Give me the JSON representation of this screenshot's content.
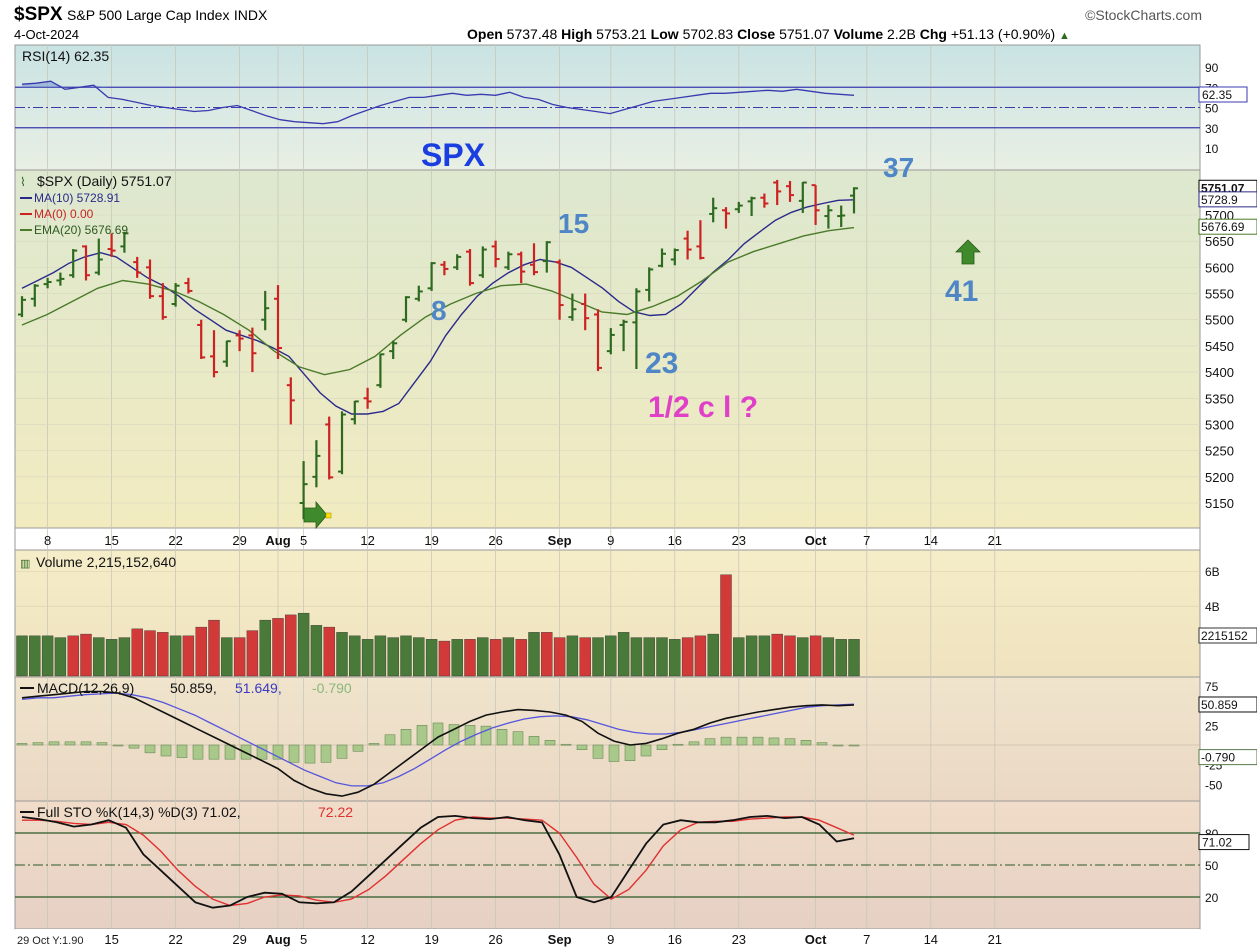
{
  "header": {
    "symbol": "$SPX",
    "name": "S&P 500 Large Cap Index",
    "exchange": "INDX",
    "date": "4-Oct-2024",
    "brand": "©StockCharts.com",
    "open_label": "Open",
    "open": "5737.48",
    "high_label": "High",
    "high": "5753.21",
    "low_label": "Low",
    "low": "5702.83",
    "close_label": "Close",
    "close": "5751.07",
    "volume_label": "Volume",
    "volume": "2.2B",
    "chg_label": "Chg",
    "chg": "+51.13 (+0.90%)",
    "chg_arrow": "▲",
    "footer_note": "29 Oct Y:1.90"
  },
  "colors": {
    "up": "#2d6a1f",
    "down": "#cc2222",
    "ma10": "#2a2a8a",
    "ema20": "#4a7a2a",
    "wave_label": "#4f86c6",
    "spx_label": "#1a3ee0",
    "pink_label": "#e040c8",
    "arrow": "#3f8a2a"
  },
  "chart_data": {
    "type": "bar",
    "instrument": "$SPX (Daily)",
    "last": "5751.07",
    "x_ticks": [
      "8",
      "15",
      "22",
      "29",
      "Aug",
      "5",
      "12",
      "19",
      "26",
      "Sep",
      "9",
      "16",
      "23",
      "Oct",
      "7",
      "14",
      "21"
    ],
    "y_ticks": [
      5150,
      5200,
      5250,
      5300,
      5350,
      5400,
      5450,
      5500,
      5550,
      5600,
      5650,
      5700
    ],
    "ylim": [
      5110,
      5760
    ],
    "legend": {
      "title": "$SPX (Daily) 5751.07",
      "ma10": "MA(10) 5728.91",
      "ma0": "MA(0) 0.00",
      "ema20": "EMA(20) 5676.69"
    },
    "right_labels": {
      "close": "5751.07",
      "ma10": "5728.9",
      "ema20": "5676.69"
    },
    "annotations": {
      "title": "SPX",
      "w8": "8",
      "w15": "15",
      "w23": "23",
      "w37": "37",
      "w41": "41",
      "half": "1/2 c l ?"
    },
    "bars": [
      {
        "d": "2024-07-03",
        "o": 5510,
        "h": 5545,
        "l": 5505,
        "c": 5538
      },
      {
        "d": "2024-07-05",
        "o": 5540,
        "h": 5568,
        "l": 5525,
        "c": 5565
      },
      {
        "d": "2024-07-08",
        "o": 5568,
        "h": 5580,
        "l": 5560,
        "c": 5572
      },
      {
        "d": "2024-07-09",
        "o": 5575,
        "h": 5590,
        "l": 5565,
        "c": 5578
      },
      {
        "d": "2024-07-10",
        "o": 5585,
        "h": 5635,
        "l": 5580,
        "c": 5632
      },
      {
        "d": "2024-07-11",
        "o": 5640,
        "h": 5642,
        "l": 5575,
        "c": 5585
      },
      {
        "d": "2024-07-12",
        "o": 5590,
        "h": 5655,
        "l": 5585,
        "c": 5615
      },
      {
        "d": "2024-07-15",
        "o": 5635,
        "h": 5665,
        "l": 5620,
        "c": 5632
      },
      {
        "d": "2024-07-16",
        "o": 5640,
        "h": 5668,
        "l": 5628,
        "c": 5665
      },
      {
        "d": "2024-07-17",
        "o": 5610,
        "h": 5620,
        "l": 5580,
        "c": 5590
      },
      {
        "d": "2024-07-18",
        "o": 5600,
        "h": 5615,
        "l": 5540,
        "c": 5545
      },
      {
        "d": "2024-07-19",
        "o": 5545,
        "h": 5570,
        "l": 5500,
        "c": 5505
      },
      {
        "d": "2024-07-22",
        "o": 5530,
        "h": 5570,
        "l": 5525,
        "c": 5565
      },
      {
        "d": "2024-07-23",
        "o": 5570,
        "h": 5580,
        "l": 5550,
        "c": 5555
      },
      {
        "d": "2024-07-24",
        "o": 5490,
        "h": 5500,
        "l": 5425,
        "c": 5428
      },
      {
        "d": "2024-07-25",
        "o": 5430,
        "h": 5480,
        "l": 5390,
        "c": 5400
      },
      {
        "d": "2024-07-26",
        "o": 5420,
        "h": 5460,
        "l": 5410,
        "c": 5459
      },
      {
        "d": "2024-07-29",
        "o": 5470,
        "h": 5480,
        "l": 5440,
        "c": 5464
      },
      {
        "d": "2024-07-30",
        "o": 5470,
        "h": 5485,
        "l": 5400,
        "c": 5436
      },
      {
        "d": "2024-07-31",
        "o": 5500,
        "h": 5555,
        "l": 5480,
        "c": 5522
      },
      {
        "d": "2024-08-01",
        "o": 5540,
        "h": 5566,
        "l": 5425,
        "c": 5446
      },
      {
        "d": "2024-08-02",
        "o": 5375,
        "h": 5390,
        "l": 5300,
        "c": 5346
      },
      {
        "d": "2024-08-05",
        "o": 5150,
        "h": 5230,
        "l": 5119,
        "c": 5186
      },
      {
        "d": "2024-08-06",
        "o": 5200,
        "h": 5270,
        "l": 5180,
        "c": 5240
      },
      {
        "d": "2024-08-07",
        "o": 5300,
        "h": 5315,
        "l": 5195,
        "c": 5199
      },
      {
        "d": "2024-08-08",
        "o": 5210,
        "h": 5325,
        "l": 5205,
        "c": 5319
      },
      {
        "d": "2024-08-09",
        "o": 5310,
        "h": 5345,
        "l": 5300,
        "c": 5344
      },
      {
        "d": "2024-08-12",
        "o": 5350,
        "h": 5370,
        "l": 5330,
        "c": 5344
      },
      {
        "d": "2024-08-13",
        "o": 5375,
        "h": 5435,
        "l": 5370,
        "c": 5434
      },
      {
        "d": "2024-08-14",
        "o": 5440,
        "h": 5460,
        "l": 5425,
        "c": 5455
      },
      {
        "d": "2024-08-15",
        "o": 5500,
        "h": 5545,
        "l": 5495,
        "c": 5543
      },
      {
        "d": "2024-08-16",
        "o": 5540,
        "h": 5565,
        "l": 5535,
        "c": 5554
      },
      {
        "d": "2024-08-19",
        "o": 5560,
        "h": 5610,
        "l": 5555,
        "c": 5608
      },
      {
        "d": "2024-08-20",
        "o": 5605,
        "h": 5612,
        "l": 5585,
        "c": 5597
      },
      {
        "d": "2024-08-21",
        "o": 5600,
        "h": 5625,
        "l": 5595,
        "c": 5620
      },
      {
        "d": "2024-08-22",
        "o": 5630,
        "h": 5635,
        "l": 5565,
        "c": 5570
      },
      {
        "d": "2024-08-23",
        "o": 5585,
        "h": 5640,
        "l": 5580,
        "c": 5634
      },
      {
        "d": "2024-08-26",
        "o": 5640,
        "h": 5651,
        "l": 5600,
        "c": 5616
      },
      {
        "d": "2024-08-27",
        "o": 5600,
        "h": 5630,
        "l": 5595,
        "c": 5625
      },
      {
        "d": "2024-08-28",
        "o": 5625,
        "h": 5630,
        "l": 5570,
        "c": 5592
      },
      {
        "d": "2024-08-29",
        "o": 5605,
        "h": 5646,
        "l": 5585,
        "c": 5591
      },
      {
        "d": "2024-08-30",
        "o": 5612,
        "h": 5650,
        "l": 5590,
        "c": 5648
      },
      {
        "d": "2024-09-03",
        "o": 5610,
        "h": 5615,
        "l": 5500,
        "c": 5528
      },
      {
        "d": "2024-09-04",
        "o": 5505,
        "h": 5550,
        "l": 5498,
        "c": 5520
      },
      {
        "d": "2024-09-05",
        "o": 5530,
        "h": 5550,
        "l": 5480,
        "c": 5503
      },
      {
        "d": "2024-09-06",
        "o": 5510,
        "h": 5520,
        "l": 5402,
        "c": 5408
      },
      {
        "d": "2024-09-09",
        "o": 5440,
        "h": 5484,
        "l": 5434,
        "c": 5471
      },
      {
        "d": "2024-09-10",
        "o": 5490,
        "h": 5500,
        "l": 5440,
        "c": 5496
      },
      {
        "d": "2024-09-11",
        "o": 5495,
        "h": 5560,
        "l": 5406,
        "c": 5554
      },
      {
        "d": "2024-09-12",
        "o": 5557,
        "h": 5600,
        "l": 5535,
        "c": 5596
      },
      {
        "d": "2024-09-13",
        "o": 5603,
        "h": 5636,
        "l": 5600,
        "c": 5626
      },
      {
        "d": "2024-09-16",
        "o": 5615,
        "h": 5636,
        "l": 5604,
        "c": 5633
      },
      {
        "d": "2024-09-17",
        "o": 5655,
        "h": 5670,
        "l": 5615,
        "c": 5634
      },
      {
        "d": "2024-09-18",
        "o": 5640,
        "h": 5690,
        "l": 5615,
        "c": 5618
      },
      {
        "d": "2024-09-19",
        "o": 5702,
        "h": 5733,
        "l": 5686,
        "c": 5713
      },
      {
        "d": "2024-09-20",
        "o": 5709,
        "h": 5715,
        "l": 5674,
        "c": 5703
      },
      {
        "d": "2024-09-23",
        "o": 5711,
        "h": 5725,
        "l": 5704,
        "c": 5718
      },
      {
        "d": "2024-09-24",
        "o": 5726,
        "h": 5735,
        "l": 5698,
        "c": 5732
      },
      {
        "d": "2024-09-25",
        "o": 5733,
        "h": 5741,
        "l": 5714,
        "c": 5722
      },
      {
        "d": "2024-09-26",
        "o": 5762,
        "h": 5767,
        "l": 5719,
        "c": 5745
      },
      {
        "d": "2024-09-27",
        "o": 5755,
        "h": 5765,
        "l": 5725,
        "c": 5738
      },
      {
        "d": "2024-09-30",
        "o": 5727,
        "h": 5763,
        "l": 5704,
        "c": 5762
      },
      {
        "d": "2024-10-01",
        "o": 5757,
        "h": 5757,
        "l": 5681,
        "c": 5709
      },
      {
        "d": "2024-10-02",
        "o": 5698,
        "h": 5719,
        "l": 5674,
        "c": 5709
      },
      {
        "d": "2024-10-03",
        "o": 5698,
        "h": 5718,
        "l": 5677,
        "c": 5699
      },
      {
        "d": "2024-10-04",
        "o": 5737,
        "h": 5753,
        "l": 5703,
        "c": 5751
      }
    ],
    "ma10": [
      5560,
      5575,
      5590,
      5608,
      5620,
      5628,
      5620,
      5600,
      5580,
      5565,
      5545,
      5520,
      5500,
      5480,
      5470,
      5460,
      5446,
      5430,
      5395,
      5360,
      5335,
      5320,
      5320,
      5325,
      5340,
      5380,
      5420,
      5470,
      5510,
      5545,
      5570,
      5590,
      5605,
      5615,
      5610,
      5600,
      5580,
      5560,
      5535,
      5515,
      5508,
      5510,
      5530,
      5560,
      5590,
      5615,
      5645,
      5668,
      5690,
      5705,
      5715,
      5722,
      5728,
      5729
    ],
    "ema20": [
      5490,
      5510,
      5535,
      5560,
      5575,
      5568,
      5555,
      5535,
      5510,
      5480,
      5440,
      5410,
      5395,
      5405,
      5430,
      5470,
      5505,
      5530,
      5550,
      5565,
      5568,
      5555,
      5535,
      5515,
      5510,
      5525,
      5545,
      5575,
      5610,
      5630,
      5645,
      5660,
      5670,
      5676
    ]
  },
  "rsi": {
    "label": "RSI(14) 62.35",
    "value": "62.35",
    "y_ticks": [
      "90",
      "70",
      "50",
      "30",
      "10"
    ],
    "series": [
      73,
      74,
      76,
      68,
      70,
      72,
      60,
      58,
      55,
      52,
      50,
      48,
      46,
      47,
      50,
      52,
      47,
      42,
      38,
      36,
      35,
      34,
      36,
      42,
      47,
      52,
      56,
      60,
      60,
      62,
      64,
      62,
      63,
      62,
      65,
      60,
      58,
      53,
      50,
      48,
      46,
      44,
      48,
      52,
      56,
      58,
      60,
      62,
      64,
      64,
      65,
      66,
      67,
      66,
      68,
      66,
      64,
      63,
      62
    ]
  },
  "volume": {
    "label": "Volume 2,215,152,640",
    "right_value": "2215152",
    "y_ticks": [
      "6B",
      "4B"
    ],
    "bars": [
      {
        "v": 2.3,
        "up": true
      },
      {
        "v": 2.3,
        "up": true
      },
      {
        "v": 2.3,
        "up": true
      },
      {
        "v": 2.2,
        "up": true
      },
      {
        "v": 2.3,
        "up": false
      },
      {
        "v": 2.4,
        "up": false
      },
      {
        "v": 2.2,
        "up": true
      },
      {
        "v": 2.1,
        "up": true
      },
      {
        "v": 2.2,
        "up": true
      },
      {
        "v": 2.7,
        "up": false
      },
      {
        "v": 2.6,
        "up": false
      },
      {
        "v": 2.5,
        "up": false
      },
      {
        "v": 2.3,
        "up": true
      },
      {
        "v": 2.3,
        "up": false
      },
      {
        "v": 2.8,
        "up": false
      },
      {
        "v": 3.2,
        "up": false
      },
      {
        "v": 2.2,
        "up": true
      },
      {
        "v": 2.2,
        "up": false
      },
      {
        "v": 2.6,
        "up": false
      },
      {
        "v": 3.2,
        "up": true
      },
      {
        "v": 3.3,
        "up": false
      },
      {
        "v": 3.5,
        "up": false
      },
      {
        "v": 3.6,
        "up": true
      },
      {
        "v": 2.9,
        "up": true
      },
      {
        "v": 2.8,
        "up": false
      },
      {
        "v": 2.5,
        "up": true
      },
      {
        "v": 2.3,
        "up": true
      },
      {
        "v": 2.1,
        "up": true
      },
      {
        "v": 2.3,
        "up": true
      },
      {
        "v": 2.2,
        "up": true
      },
      {
        "v": 2.3,
        "up": true
      },
      {
        "v": 2.2,
        "up": true
      },
      {
        "v": 2.1,
        "up": true
      },
      {
        "v": 2.0,
        "up": false
      },
      {
        "v": 2.1,
        "up": true
      },
      {
        "v": 2.1,
        "up": false
      },
      {
        "v": 2.2,
        "up": true
      },
      {
        "v": 2.1,
        "up": false
      },
      {
        "v": 2.2,
        "up": true
      },
      {
        "v": 2.1,
        "up": false
      },
      {
        "v": 2.5,
        "up": true
      },
      {
        "v": 2.5,
        "up": false
      },
      {
        "v": 2.2,
        "up": false
      },
      {
        "v": 2.3,
        "up": true
      },
      {
        "v": 2.2,
        "up": false
      },
      {
        "v": 2.2,
        "up": true
      },
      {
        "v": 2.3,
        "up": true
      },
      {
        "v": 2.5,
        "up": true
      },
      {
        "v": 2.2,
        "up": true
      },
      {
        "v": 2.2,
        "up": true
      },
      {
        "v": 2.2,
        "up": true
      },
      {
        "v": 2.1,
        "up": true
      },
      {
        "v": 2.2,
        "up": false
      },
      {
        "v": 2.3,
        "up": false
      },
      {
        "v": 2.4,
        "up": true
      },
      {
        "v": 5.8,
        "up": false
      },
      {
        "v": 2.2,
        "up": true
      },
      {
        "v": 2.3,
        "up": true
      },
      {
        "v": 2.3,
        "up": true
      },
      {
        "v": 2.4,
        "up": false
      },
      {
        "v": 2.3,
        "up": false
      },
      {
        "v": 2.2,
        "up": true
      },
      {
        "v": 2.3,
        "up": false
      },
      {
        "v": 2.2,
        "up": true
      },
      {
        "v": 2.1,
        "up": true
      },
      {
        "v": 2.1,
        "up": true
      }
    ]
  },
  "macd": {
    "label": "MACD(12,26,9)",
    "macd_value": "50.859",
    "signal_value": "51.649",
    "hist_value": "-0.790",
    "y_ticks": [
      "75",
      "25",
      "-25",
      "-50"
    ],
    "macd": [
      60,
      62,
      64,
      66,
      68,
      68,
      66,
      60,
      50,
      40,
      30,
      20,
      10,
      0,
      -10,
      -20,
      -30,
      -45,
      -55,
      -62,
      -65,
      -60,
      -50,
      -35,
      -20,
      -5,
      10,
      20,
      30,
      38,
      42,
      45,
      44,
      42,
      38,
      30,
      15,
      5,
      0,
      2,
      8,
      15,
      20,
      28,
      34,
      38,
      42,
      45,
      48,
      50,
      51,
      50,
      51
    ],
    "signal": [
      58,
      60,
      60,
      62,
      64,
      65,
      66,
      64,
      60,
      54,
      46,
      38,
      28,
      18,
      8,
      -2,
      -12,
      -22,
      -32,
      -40,
      -48,
      -52,
      -52,
      -48,
      -40,
      -30,
      -18,
      -6,
      5,
      14,
      22,
      28,
      33,
      36,
      37,
      36,
      32,
      26,
      20,
      16,
      14,
      14,
      16,
      20,
      24,
      28,
      32,
      36,
      40,
      44,
      48,
      50,
      51,
      52
    ],
    "hist": [
      2,
      3,
      4,
      4,
      4,
      3,
      0,
      -4,
      -10,
      -14,
      -16,
      -18,
      -18,
      -18,
      -18,
      -18,
      -18,
      -22,
      -23,
      -22,
      -17,
      -8,
      2,
      13,
      20,
      25,
      28,
      26,
      25,
      24,
      20,
      17,
      11,
      6,
      1,
      -6,
      -17,
      -21,
      -20,
      -14,
      -6,
      1,
      4,
      8,
      10,
      10,
      10,
      9,
      8,
      6,
      3,
      0,
      -1
    ]
  },
  "sto": {
    "label": "Full STO %K(14,3) %D(3) 71.02,",
    "k_value": "71.02",
    "d_value": "72.22",
    "y_ticks": [
      "80",
      "50",
      "20"
    ],
    "k": [
      95,
      93,
      90,
      86,
      88,
      92,
      85,
      60,
      45,
      30,
      15,
      10,
      12,
      20,
      24,
      23,
      15,
      14,
      15,
      25,
      40,
      55,
      70,
      85,
      95,
      96,
      94,
      93,
      95,
      92,
      90,
      60,
      20,
      15,
      20,
      45,
      70,
      88,
      92,
      90,
      90,
      92,
      95,
      96,
      94,
      95,
      88,
      72,
      75
    ],
    "d": [
      92,
      92,
      91,
      89,
      88,
      90,
      88,
      78,
      63,
      45,
      30,
      18,
      12,
      14,
      20,
      22,
      21,
      17,
      15,
      18,
      27,
      40,
      55,
      70,
      83,
      92,
      95,
      94,
      94,
      93,
      92,
      80,
      57,
      32,
      18,
      27,
      45,
      68,
      83,
      90,
      91,
      91,
      93,
      94,
      95,
      95,
      92,
      85,
      78
    ]
  }
}
